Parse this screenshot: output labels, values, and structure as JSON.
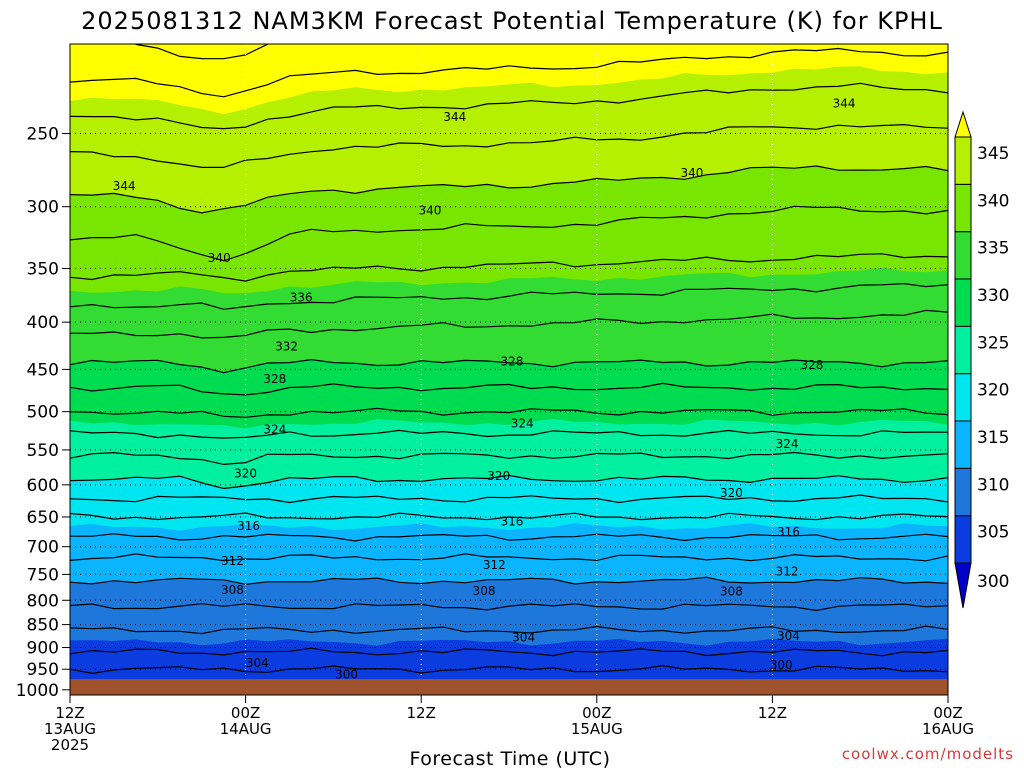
{
  "chart_data": {
    "type": "heatmap",
    "title": "2025081312 NAM3KM Forecast Potential Temperature (K) for KPHL",
    "xlabel": "Forecast Time (UTC)",
    "ylabel": "",
    "credit": "coolwx.com/modelts",
    "x_ticks": [
      {
        "hours": 0,
        "line1": "12Z",
        "line2": "13AUG",
        "line3": "2025"
      },
      {
        "hours": 12,
        "line1": "00Z",
        "line2": "14AUG",
        "line3": ""
      },
      {
        "hours": 24,
        "line1": "12Z",
        "line2": "",
        "line3": ""
      },
      {
        "hours": 36,
        "line1": "00Z",
        "line2": "15AUG",
        "line3": ""
      },
      {
        "hours": 48,
        "line1": "12Z",
        "line2": "",
        "line3": ""
      },
      {
        "hours": 60,
        "line1": "00Z",
        "line2": "16AUG",
        "line3": ""
      }
    ],
    "x_range_hours": [
      0,
      60
    ],
    "y_ticks": [
      250,
      300,
      350,
      400,
      450,
      500,
      550,
      600,
      650,
      700,
      750,
      800,
      850,
      900,
      950,
      1000
    ],
    "y_range_hpa": [
      200,
      1013
    ],
    "y_scale": "log",
    "grid": true,
    "colorbar": {
      "labels": [
        345,
        340,
        335,
        330,
        325,
        320,
        315,
        310,
        305,
        300
      ],
      "levels": [
        300,
        305,
        310,
        315,
        320,
        325,
        330,
        335,
        340,
        345
      ],
      "colors": [
        "#0000c8",
        "#0a3ce0",
        "#1e78dc",
        "#0ab4ff",
        "#00e6f0",
        "#00f0a0",
        "#00dc50",
        "#32dc32",
        "#78e600",
        "#b4f000",
        "#ffff00"
      ],
      "extend": "both"
    },
    "ground_color": "#a0522d",
    "profile_levels_hpa": [
      1000,
      950,
      900,
      850,
      800,
      750,
      700,
      650,
      600,
      550,
      500,
      450,
      400,
      350,
      300,
      250,
      200
    ],
    "profile_theta_k": [
      299.5,
      302,
      304.5,
      306.5,
      308.5,
      310.5,
      313,
      316,
      319.5,
      322.5,
      326,
      329.5,
      333,
      336.5,
      339.5,
      343,
      348
    ],
    "contour_labels": [
      {
        "value": "344",
        "hours": 3.7,
        "hpa": 285
      },
      {
        "value": "344",
        "hours": 26.3,
        "hpa": 240
      },
      {
        "value": "344",
        "hours": 52.9,
        "hpa": 232
      },
      {
        "value": "340",
        "hours": 24.6,
        "hpa": 303
      },
      {
        "value": "340",
        "hours": 42.5,
        "hpa": 276
      },
      {
        "value": "340",
        "hours": 10.2,
        "hpa": 341
      },
      {
        "value": "336",
        "hours": 15.8,
        "hpa": 376
      },
      {
        "value": "332",
        "hours": 14.8,
        "hpa": 425
      },
      {
        "value": "328",
        "hours": 14.0,
        "hpa": 461
      },
      {
        "value": "328",
        "hours": 30.2,
        "hpa": 441
      },
      {
        "value": "328",
        "hours": 50.7,
        "hpa": 445
      },
      {
        "value": "324",
        "hours": 14.0,
        "hpa": 523
      },
      {
        "value": "324",
        "hours": 30.9,
        "hpa": 515
      },
      {
        "value": "324",
        "hours": 49.0,
        "hpa": 542
      },
      {
        "value": "320",
        "hours": 12.0,
        "hpa": 583
      },
      {
        "value": "320",
        "hours": 29.3,
        "hpa": 587
      },
      {
        "value": "320",
        "hours": 45.2,
        "hpa": 612
      },
      {
        "value": "316",
        "hours": 12.2,
        "hpa": 665
      },
      {
        "value": "316",
        "hours": 30.2,
        "hpa": 657
      },
      {
        "value": "316",
        "hours": 49.1,
        "hpa": 675
      },
      {
        "value": "312",
        "hours": 11.1,
        "hpa": 725
      },
      {
        "value": "312",
        "hours": 29.0,
        "hpa": 733
      },
      {
        "value": "312",
        "hours": 49.0,
        "hpa": 745
      },
      {
        "value": "308",
        "hours": 11.1,
        "hpa": 780
      },
      {
        "value": "308",
        "hours": 28.3,
        "hpa": 782
      },
      {
        "value": "308",
        "hours": 45.2,
        "hpa": 783
      },
      {
        "value": "304",
        "hours": 31.0,
        "hpa": 878
      },
      {
        "value": "304",
        "hours": 49.1,
        "hpa": 875
      },
      {
        "value": "304",
        "hours": 12.8,
        "hpa": 935
      },
      {
        "value": "300",
        "hours": 18.9,
        "hpa": 963
      },
      {
        "value": "300",
        "hours": 48.6,
        "hpa": 940
      }
    ]
  }
}
